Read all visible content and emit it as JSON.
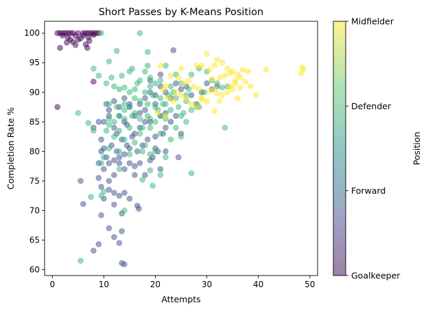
{
  "chart_data": {
    "type": "scatter",
    "title": "Short Passes by K-Means Position",
    "xlabel": "Attempts",
    "ylabel": "Completion Rate %",
    "xlim": [
      -1.5,
      51.5
    ],
    "ylim": [
      59,
      102
    ],
    "xticks": [
      0,
      10,
      20,
      30,
      40,
      50
    ],
    "yticks": [
      60,
      65,
      70,
      75,
      80,
      85,
      90,
      95,
      100
    ],
    "grid": false,
    "marker_alpha": 0.5,
    "colorbar": {
      "label": "Position",
      "ticks": [
        "Goalkeeper",
        "Forward",
        "Defender",
        "Midfielder"
      ],
      "colormap": [
        "#440154",
        "#3b528b",
        "#21918c",
        "#5ec962",
        "#fde725"
      ]
    },
    "series": [
      {
        "name": "Goalkeeper",
        "color": "#440154",
        "points": [
          [
            1,
            100
          ],
          [
            1.5,
            100
          ],
          [
            2,
            100
          ],
          [
            2.5,
            100
          ],
          [
            3,
            100
          ],
          [
            3.5,
            100
          ],
          [
            4,
            100
          ],
          [
            5,
            100
          ],
          [
            6,
            100
          ],
          [
            6.5,
            100
          ],
          [
            7,
            100
          ],
          [
            7.5,
            100
          ],
          [
            8,
            100
          ],
          [
            8.5,
            100
          ],
          [
            9,
            100
          ],
          [
            2,
            99.6
          ],
          [
            4.5,
            99.6
          ],
          [
            6,
            99.6
          ],
          [
            8,
            99.7
          ],
          [
            3,
            99.2
          ],
          [
            3.5,
            98.9
          ],
          [
            5,
            98.9
          ],
          [
            5.5,
            99.1
          ],
          [
            7,
            99.3
          ],
          [
            4,
            98.5
          ],
          [
            7.2,
            98.7
          ],
          [
            2.8,
            98.4
          ],
          [
            6.5,
            98.1
          ],
          [
            4.5,
            98
          ],
          [
            1.5,
            97.5
          ],
          [
            6.8,
            97.5
          ],
          [
            8,
            91.8
          ],
          [
            1,
            87.5
          ]
        ]
      },
      {
        "name": "Forward",
        "color": "#3b528b",
        "points": [
          [
            23.5,
            97.1
          ],
          [
            10,
            85
          ],
          [
            10.5,
            88
          ],
          [
            11,
            87
          ],
          [
            12,
            84
          ],
          [
            13,
            86
          ],
          [
            14,
            85
          ],
          [
            15,
            88
          ],
          [
            16,
            86
          ],
          [
            17,
            84
          ],
          [
            18,
            87
          ],
          [
            19,
            85
          ],
          [
            20,
            88
          ],
          [
            21,
            86
          ],
          [
            22,
            84
          ],
          [
            12.5,
            83
          ],
          [
            13.5,
            82
          ],
          [
            14.5,
            81
          ],
          [
            15.5,
            82.5
          ],
          [
            16.5,
            80
          ],
          [
            17.5,
            81
          ],
          [
            18.5,
            82
          ],
          [
            19.5,
            79
          ],
          [
            20.5,
            80
          ],
          [
            21.5,
            83
          ],
          [
            13,
            78
          ],
          [
            14,
            77
          ],
          [
            15,
            78
          ],
          [
            16,
            76
          ],
          [
            12,
            76
          ],
          [
            11,
            75
          ],
          [
            10,
            77
          ],
          [
            9,
            78
          ],
          [
            9.5,
            80
          ],
          [
            10.5,
            79
          ],
          [
            11.5,
            81
          ],
          [
            12.5,
            80
          ],
          [
            8,
            84
          ],
          [
            9,
            85
          ],
          [
            9.5,
            82
          ],
          [
            10,
            80.5
          ],
          [
            11,
            78
          ],
          [
            12,
            78.5
          ],
          [
            13,
            79
          ],
          [
            14,
            79.5
          ],
          [
            15,
            80.5
          ],
          [
            16,
            77.5
          ],
          [
            17,
            78
          ],
          [
            18,
            76
          ],
          [
            19,
            78.5
          ],
          [
            20,
            80.5
          ],
          [
            21,
            77
          ],
          [
            22,
            80
          ],
          [
            23,
            85
          ],
          [
            24.5,
            79
          ],
          [
            25,
            83
          ],
          [
            9,
            75.5
          ],
          [
            9.5,
            74
          ],
          [
            11,
            73.5
          ],
          [
            12,
            73
          ],
          [
            13,
            72.5
          ],
          [
            14,
            73
          ],
          [
            15,
            72
          ],
          [
            10,
            72
          ],
          [
            12,
            71
          ],
          [
            13.5,
            69.5
          ],
          [
            16.5,
            70.8
          ],
          [
            16.8,
            70.3
          ],
          [
            9.5,
            69.2
          ],
          [
            5.5,
            75
          ],
          [
            6,
            71.1
          ],
          [
            11,
            67
          ],
          [
            12,
            65.5
          ],
          [
            13.5,
            66.5
          ],
          [
            13,
            64.5
          ],
          [
            9,
            64.3
          ],
          [
            8,
            63.2
          ],
          [
            13.5,
            61.1
          ],
          [
            14,
            60.9
          ],
          [
            15,
            87.5
          ],
          [
            17,
            88
          ],
          [
            18,
            89
          ],
          [
            19,
            90
          ],
          [
            20,
            89.5
          ],
          [
            21,
            91
          ],
          [
            22,
            90
          ],
          [
            23,
            89
          ],
          [
            24,
            91.5
          ],
          [
            25,
            90.5
          ],
          [
            26,
            91
          ],
          [
            27,
            89.5
          ],
          [
            28,
            88
          ],
          [
            29,
            90
          ],
          [
            30,
            91.5
          ],
          [
            31,
            90.5
          ],
          [
            32,
            91
          ],
          [
            21,
            93
          ],
          [
            19,
            92
          ],
          [
            11,
            86
          ],
          [
            13,
            87.5
          ],
          [
            14.5,
            84.5
          ],
          [
            16,
            83
          ],
          [
            18,
            85
          ],
          [
            20,
            82.5
          ],
          [
            22,
            86.5
          ],
          [
            12,
            88.5
          ],
          [
            17,
            86.5
          ],
          [
            14,
            89
          ],
          [
            24,
            86
          ]
        ]
      },
      {
        "name": "Defender",
        "color": "#35b779",
        "points": [
          [
            9.5,
            100
          ],
          [
            17,
            100
          ],
          [
            12.5,
            97
          ],
          [
            18.5,
            96.8
          ],
          [
            11,
            95.2
          ],
          [
            18.5,
            94.5
          ],
          [
            15.5,
            94
          ],
          [
            8,
            94
          ],
          [
            22,
            94.5
          ],
          [
            24,
            93
          ],
          [
            9,
            92.8
          ],
          [
            11.5,
            92.5
          ],
          [
            13.5,
            92.8
          ],
          [
            15,
            93.5
          ],
          [
            17,
            92
          ],
          [
            19,
            92.5
          ],
          [
            20,
            91.5
          ],
          [
            21,
            92
          ],
          [
            23,
            91
          ],
          [
            25,
            91.5
          ],
          [
            27,
            93
          ],
          [
            28.5,
            94
          ],
          [
            30,
            93.5
          ],
          [
            10.5,
            91.5
          ],
          [
            12,
            91
          ],
          [
            13,
            90.5
          ],
          [
            14,
            90.8
          ],
          [
            16,
            90.5
          ],
          [
            18,
            90
          ],
          [
            19.5,
            89.5
          ],
          [
            21,
            89
          ],
          [
            22.5,
            89.5
          ],
          [
            24,
            89
          ],
          [
            26,
            88.5
          ],
          [
            28,
            87.5
          ],
          [
            29.5,
            90
          ],
          [
            31,
            92
          ],
          [
            32,
            91.5
          ],
          [
            33,
            90.8
          ],
          [
            34,
            91
          ],
          [
            11,
            88
          ],
          [
            12.5,
            87.5
          ],
          [
            14,
            88
          ],
          [
            15,
            87.5
          ],
          [
            16,
            89
          ],
          [
            17,
            88.5
          ],
          [
            18.5,
            88
          ],
          [
            20,
            87.5
          ],
          [
            21.5,
            88
          ],
          [
            23,
            87
          ],
          [
            25,
            86
          ],
          [
            27,
            87
          ],
          [
            28.5,
            87.5
          ],
          [
            12,
            85
          ],
          [
            13,
            86
          ],
          [
            14,
            85.5
          ],
          [
            15.5,
            86
          ],
          [
            17,
            85.5
          ],
          [
            18.5,
            86
          ],
          [
            20,
            85
          ],
          [
            22,
            85.5
          ],
          [
            24,
            84
          ],
          [
            26,
            85
          ],
          [
            11,
            84.5
          ],
          [
            13,
            83.5
          ],
          [
            15,
            84
          ],
          [
            17,
            83
          ],
          [
            19,
            84
          ],
          [
            21,
            83
          ],
          [
            23,
            82
          ],
          [
            25,
            82.5
          ],
          [
            10.5,
            83.5
          ],
          [
            12,
            82.5
          ],
          [
            14,
            82
          ],
          [
            16,
            81.5
          ],
          [
            18,
            81
          ],
          [
            11,
            80.5
          ],
          [
            13,
            80
          ],
          [
            15,
            79.5
          ],
          [
            17.5,
            80
          ],
          [
            19,
            79.5
          ],
          [
            20,
            80
          ],
          [
            10,
            79
          ],
          [
            22,
            79
          ],
          [
            8,
            83.5
          ],
          [
            7,
            84.8
          ],
          [
            5,
            86.5
          ],
          [
            11,
            85.5
          ],
          [
            9.5,
            78
          ],
          [
            13,
            77
          ],
          [
            19,
            76.8
          ],
          [
            21,
            76
          ],
          [
            17.5,
            75.2
          ],
          [
            19.5,
            74.2
          ],
          [
            27,
            76.3
          ],
          [
            10,
            73.2
          ],
          [
            9.5,
            72.5
          ],
          [
            7.5,
            72.3
          ],
          [
            14,
            70
          ],
          [
            5.5,
            61.5
          ],
          [
            33.5,
            84
          ],
          [
            20.5,
            87
          ],
          [
            22,
            88
          ],
          [
            24.5,
            87.5
          ],
          [
            26,
            89.5
          ],
          [
            23.5,
            90
          ],
          [
            19,
            91
          ],
          [
            16.5,
            91.5
          ],
          [
            18,
            93.5
          ],
          [
            26.5,
            90.5
          ],
          [
            25.5,
            86.5
          ],
          [
            15,
            90
          ],
          [
            14,
            87
          ],
          [
            16,
            86.5
          ],
          [
            19,
            85.5
          ],
          [
            21,
            86
          ],
          [
            17.5,
            84
          ]
        ]
      },
      {
        "name": "Midfielder",
        "color": "#fde725",
        "points": [
          [
            21,
            94.5
          ],
          [
            25,
            94
          ],
          [
            28,
            94.5
          ],
          [
            29,
            94.5
          ],
          [
            30,
            96.5
          ],
          [
            32,
            95.5
          ],
          [
            31.5,
            94.5
          ],
          [
            33,
            95
          ],
          [
            34,
            94
          ],
          [
            35,
            93.5
          ],
          [
            36,
            93
          ],
          [
            37,
            93.8
          ],
          [
            38,
            93.5
          ],
          [
            41.5,
            93.8
          ],
          [
            48.5,
            94.2
          ],
          [
            48.8,
            93.8
          ],
          [
            48.3,
            93.2
          ],
          [
            30.5,
            93.8
          ],
          [
            31,
            92.2
          ],
          [
            32.5,
            92.5
          ],
          [
            33.5,
            92.8
          ],
          [
            34.5,
            93.2
          ],
          [
            35.5,
            92
          ],
          [
            36.5,
            92.5
          ],
          [
            37.5,
            91.8
          ],
          [
            38.5,
            91
          ],
          [
            39.5,
            89.5
          ],
          [
            36,
            89
          ],
          [
            35,
            90.5
          ],
          [
            34,
            90
          ],
          [
            33,
            89.5
          ],
          [
            32,
            89.8
          ],
          [
            32.5,
            88.5
          ],
          [
            31.5,
            86.8
          ],
          [
            30,
            88.5
          ],
          [
            29,
            89
          ],
          [
            28.5,
            90.5
          ],
          [
            27.5,
            91
          ],
          [
            26.5,
            92
          ],
          [
            25.5,
            91.5
          ],
          [
            24.5,
            92.5
          ],
          [
            23,
            92.8
          ],
          [
            22,
            91
          ],
          [
            21.5,
            90.5
          ],
          [
            22.5,
            89
          ],
          [
            24,
            90
          ],
          [
            25,
            89.5
          ],
          [
            26,
            89
          ],
          [
            27,
            88
          ],
          [
            28,
            87.5
          ],
          [
            29,
            88.8
          ],
          [
            30.5,
            90.2
          ],
          [
            31.5,
            90.5
          ],
          [
            34.5,
            91
          ],
          [
            35.5,
            91.5
          ],
          [
            36.5,
            90.8
          ],
          [
            23.5,
            88.5
          ],
          [
            20.5,
            86.5
          ],
          [
            22,
            86
          ]
        ]
      }
    ]
  }
}
